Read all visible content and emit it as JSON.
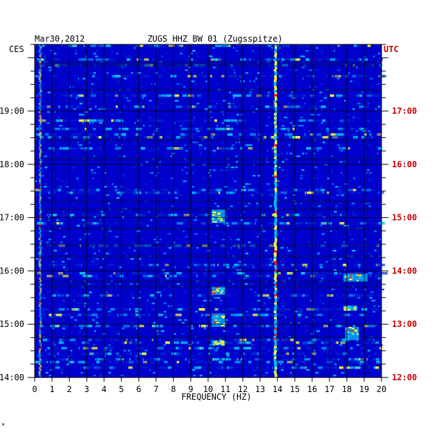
{
  "chart_data": {
    "type": "heatmap",
    "date": "Mar30,2012",
    "station": "ZUGS HHZ BW 01 (Zugsspitze)",
    "left_timezone": "CES",
    "right_timezone": "UTC",
    "xlabel": "FREQUENCY (HZ)",
    "xlim": [
      0,
      20
    ],
    "x_ticks": [
      "0",
      "1",
      "2",
      "3",
      "4",
      "5",
      "6",
      "7",
      "8",
      "9",
      "10",
      "11",
      "12",
      "13",
      "14",
      "15",
      "16",
      "17",
      "18",
      "19",
      "20"
    ],
    "time_range_local_hours": [
      14.0,
      20.25
    ],
    "y_ticks_left": [
      {
        "t": 19,
        "label": "19:00"
      },
      {
        "t": 18,
        "label": "18:00"
      },
      {
        "t": 17,
        "label": "17:00"
      },
      {
        "t": 16,
        "label": "16:00"
      },
      {
        "t": 15,
        "label": "15:00"
      },
      {
        "t": 14,
        "label": "14:00"
      }
    ],
    "y_ticks_right": [
      {
        "t": 19,
        "label": "17:00"
      },
      {
        "t": 18,
        "label": "16:00"
      },
      {
        "t": 17,
        "label": "15:00"
      },
      {
        "t": 16,
        "label": "14:00"
      },
      {
        "t": 15,
        "label": "13:00"
      },
      {
        "t": 14,
        "label": "12:00"
      }
    ],
    "colors": {
      "background": "#0000cc",
      "low": "#0020d0",
      "mid": "#00c8ff",
      "high": "#ffff30",
      "peak": "#ff2000",
      "utc_label": "#cc0000",
      "grid": "#000000"
    },
    "persistent_lines_hz": [
      13.85,
      0.3
    ],
    "energy_patches": [
      {
        "f_min": 10.2,
        "f_max": 11.0,
        "t_start": 16.9,
        "t_end": 17.15
      },
      {
        "f_min": 10.2,
        "f_max": 11.0,
        "t_start": 15.55,
        "t_end": 15.7
      },
      {
        "f_min": 10.2,
        "f_max": 11.0,
        "t_start": 14.95,
        "t_end": 15.2
      },
      {
        "f_min": 10.2,
        "f_max": 11.0,
        "t_start": 14.6,
        "t_end": 14.7
      },
      {
        "f_min": 17.8,
        "f_max": 18.6,
        "t_start": 15.25,
        "t_end": 15.35
      },
      {
        "f_min": 17.8,
        "f_max": 19.2,
        "t_start": 15.8,
        "t_end": 15.95
      },
      {
        "f_min": 17.9,
        "f_max": 18.7,
        "t_start": 14.7,
        "t_end": 14.95
      }
    ],
    "corner_mark": "*"
  }
}
